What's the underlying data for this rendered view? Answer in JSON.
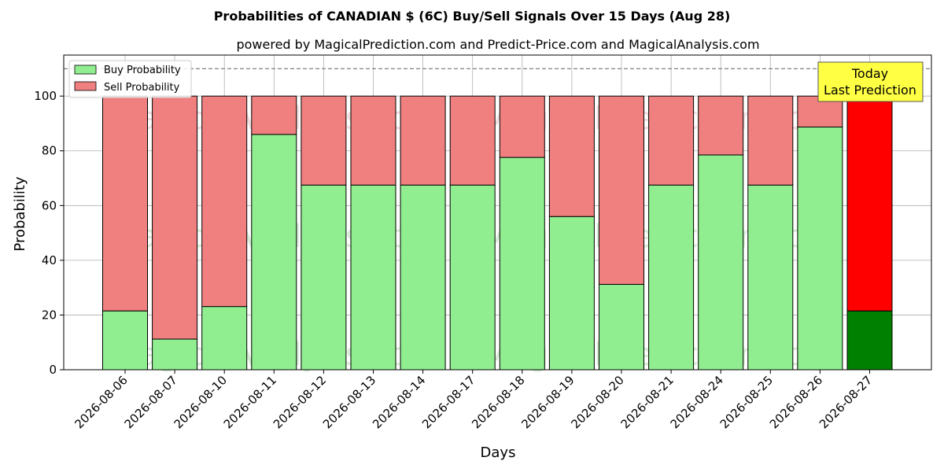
{
  "chart_data": {
    "type": "bar",
    "stacked": true,
    "title": "Probabilities of CANADIAN $ (6C) Buy/Sell Signals Over 15 Days (Aug 28)",
    "subtitle": "powered by MagicalPrediction.com and Predict-Price.com and MagicalAnalysis.com",
    "xlabel": "Days",
    "ylabel": "Probability",
    "ylim": [
      0,
      115
    ],
    "yticks": [
      0,
      20,
      40,
      60,
      80,
      100
    ],
    "reference_line": 110,
    "grid": true,
    "legend_position": "top-left",
    "categories": [
      "2026-08-06",
      "2026-08-07",
      "2026-08-10",
      "2026-08-11",
      "2026-08-12",
      "2026-08-13",
      "2026-08-14",
      "2026-08-17",
      "2026-08-18",
      "2026-08-19",
      "2026-08-20",
      "2026-08-21",
      "2026-08-24",
      "2026-08-25",
      "2026-08-26",
      "2026-08-27"
    ],
    "series": [
      {
        "name": "Buy Probability",
        "color": "#90ee90",
        "highlight_color": "#008000",
        "values": [
          21.5,
          11.2,
          23.1,
          86.0,
          67.5,
          67.5,
          67.5,
          67.5,
          77.6,
          56.0,
          31.2,
          67.5,
          78.5,
          67.5,
          88.7,
          21.5
        ]
      },
      {
        "name": "Sell Probability",
        "color": "#f08080",
        "highlight_color": "#ff0000",
        "values": [
          78.5,
          88.8,
          76.9,
          14.0,
          32.5,
          32.5,
          32.5,
          32.5,
          22.4,
          44.0,
          68.8,
          32.5,
          21.5,
          32.5,
          11.3,
          78.5
        ]
      }
    ],
    "annotation": {
      "lines": [
        "Today",
        "Last Prediction"
      ],
      "bg_color": "#ffff44"
    },
    "watermarks": [
      "MagicalAnalysis.com",
      "MagicalPrediction.com"
    ]
  }
}
